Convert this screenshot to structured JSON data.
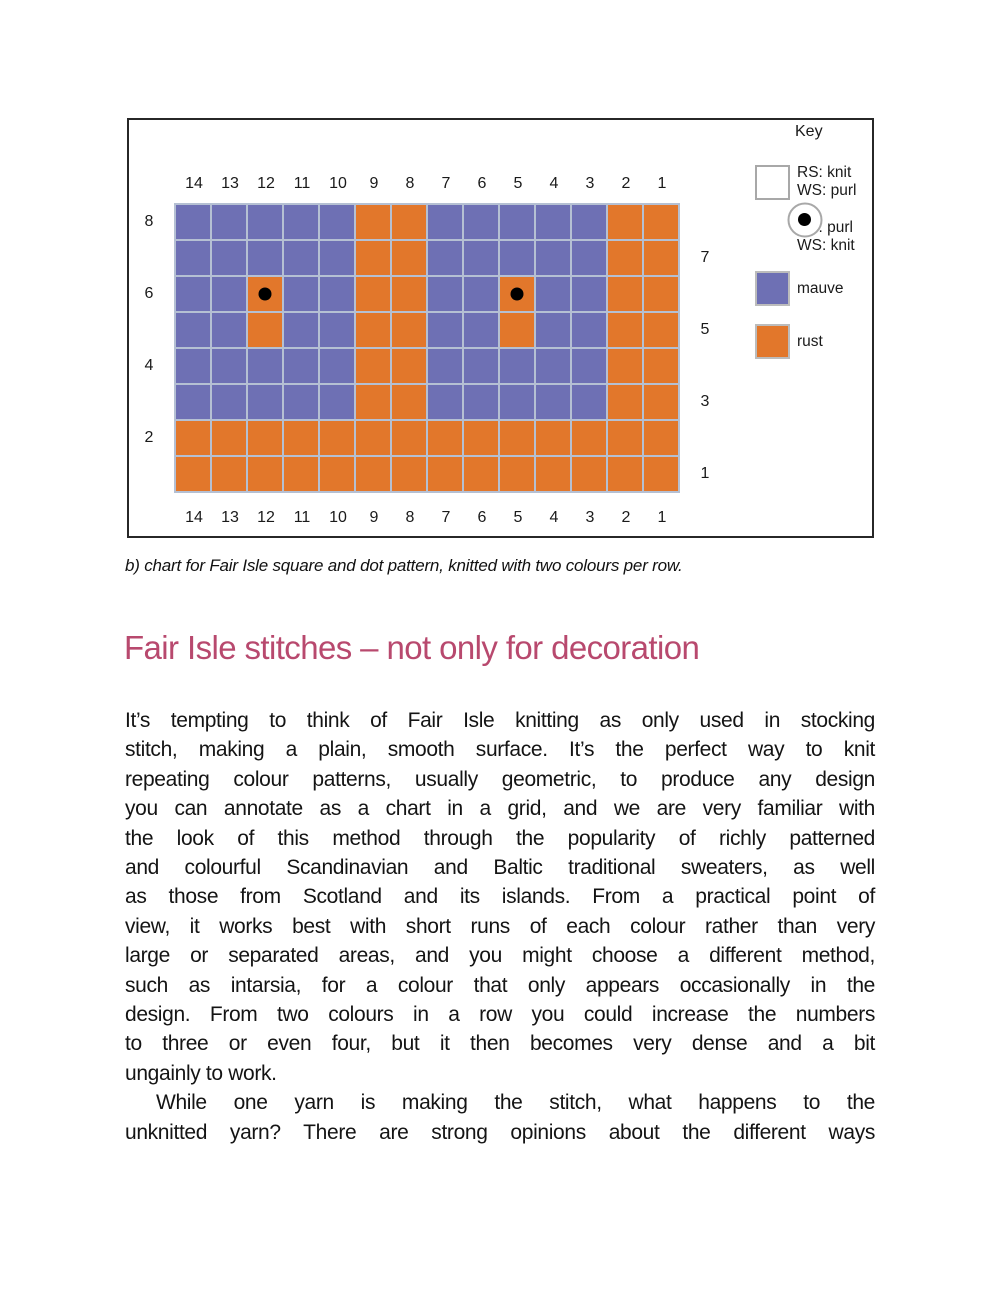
{
  "colors": {
    "mauve": "#6e70b4",
    "rust": "#e2772b",
    "gridline": "#b5c0d3",
    "dot": "#000000",
    "heading": "#b8496e",
    "figure_border": "#272727",
    "key_swatch_border": "#a8a8a8"
  },
  "figure": {
    "key": {
      "title": "Key",
      "items": [
        {
          "swatch": "blank",
          "lines": [
            "RS: knit",
            "WS: purl"
          ]
        },
        {
          "swatch": "dot",
          "lines": [
            "RS: purl",
            "WS: knit"
          ]
        },
        {
          "swatch": "mauve",
          "lines": [
            "mauve"
          ]
        },
        {
          "swatch": "rust",
          "lines": [
            "rust"
          ]
        }
      ]
    }
  },
  "chart_data": {
    "type": "heatmap",
    "title": "Chart for Fair Isle square and dot pattern",
    "columns": [
      "14",
      "13",
      "12",
      "11",
      "10",
      "9",
      "8",
      "7",
      "6",
      "5",
      "4",
      "3",
      "2",
      "1"
    ],
    "row_labels_left": [
      {
        "label": "8",
        "row_index": 0
      },
      {
        "label": "6",
        "row_index": 2
      },
      {
        "label": "4",
        "row_index": 4
      },
      {
        "label": "2",
        "row_index": 6
      }
    ],
    "row_labels_right": [
      {
        "label": "7",
        "row_index": 1
      },
      {
        "label": "5",
        "row_index": 3
      },
      {
        "label": "3",
        "row_index": 5
      },
      {
        "label": "1",
        "row_index": 7
      }
    ],
    "cell_legend": {
      "M": "mauve",
      "R": "rust",
      "D": "rust with purl dot"
    },
    "rows_top_to_bottom": [
      {
        "row": "8",
        "cells": "MMMMMRRMMMMMRR"
      },
      {
        "row": "7",
        "cells": "MMMMMRRMMMMMRR"
      },
      {
        "row": "6",
        "cells": "MMDMMRRMMDMMRR"
      },
      {
        "row": "5",
        "cells": "MMRMMRRMMRMMRR"
      },
      {
        "row": "4",
        "cells": "MMMMMRRMMMMMRR"
      },
      {
        "row": "3",
        "cells": "MMMMMRRMMMMMRR"
      },
      {
        "row": "2",
        "cells": "RRRRRRRRRRRRRR"
      },
      {
        "row": "1",
        "cells": "RRRRRRRRRRRRRR"
      }
    ]
  },
  "caption": "b) chart for Fair Isle square and dot pattern, knitted with two colours per row.",
  "heading": "Fair Isle stitches – not only for decoration",
  "body": {
    "paragraphs": [
      {
        "lines": [
          {
            "text": "It’s tempting to think of Fair Isle knitting as only used in stocking",
            "justify": true
          },
          {
            "text": "stitch, making a plain, smooth surface. It’s the perfect way to knit",
            "justify": true
          },
          {
            "text": "repeating colour patterns, usually geometric, to produce any design",
            "justify": true
          },
          {
            "text": "you can annotate as a chart in a grid, and we are very familiar with",
            "justify": true
          },
          {
            "text": "the look of this method through the popularity of richly patterned",
            "justify": true
          },
          {
            "text": "and colourful Scandinavian and Baltic traditional sweaters, as well",
            "justify": true
          },
          {
            "text": "as those from Scotland and its islands. From a practical point of",
            "justify": true
          },
          {
            "text": "view, it works best with short runs of each colour rather than very",
            "justify": true
          },
          {
            "text": "large or separated areas, and you might choose a different method,",
            "justify": true
          },
          {
            "text": "such as intarsia, for a colour that only appears occasionally in the",
            "justify": true
          },
          {
            "text": "design. From two colours in a row you could increase the numbers",
            "justify": true
          },
          {
            "text": "to three or even four, but it then becomes very dense and a bit",
            "justify": true
          },
          {
            "text": "ungainly to work.",
            "justify": false
          }
        ]
      },
      {
        "lines": [
          {
            "text": "While one yarn is making the stitch, what happens to the",
            "justify": true,
            "indent": true
          },
          {
            "text": "unknitted yarn? There are strong opinions about the different ways",
            "justify": true
          }
        ]
      }
    ]
  }
}
